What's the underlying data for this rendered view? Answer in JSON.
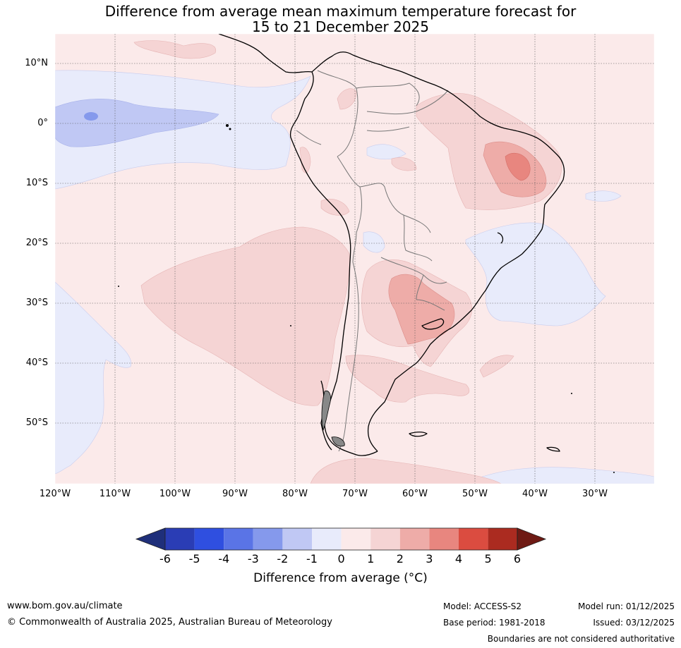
{
  "title": {
    "line1": "Difference from average mean maximum temperature forecast for",
    "line2": "15 to 21 December 2025"
  },
  "map": {
    "lat_labels": [
      "10°N",
      "0°",
      "10°S",
      "20°S",
      "30°S",
      "40°S",
      "50°S"
    ],
    "lon_labels": [
      "120°W",
      "110°W",
      "100°W",
      "90°W",
      "80°W",
      "70°W",
      "60°W",
      "50°W",
      "40°W",
      "30°W"
    ],
    "features": [
      "South America coastline",
      "national boundaries"
    ]
  },
  "colorbar": {
    "label": "Difference from average (°C)",
    "ticks": [
      "-6",
      "-5",
      "-4",
      "-3",
      "-2",
      "-1",
      "0",
      "1",
      "2",
      "3",
      "4",
      "5",
      "6"
    ],
    "colors": [
      "#1f2f7a",
      "#2a3db5",
      "#2f4fe0",
      "#5a74e6",
      "#8599ec",
      "#c0c8f4",
      "#e8ebfb",
      "#fbeaea",
      "#f5d4d4",
      "#eeaca8",
      "#e8867f",
      "#db4c40",
      "#ab2b20",
      "#6e1a14"
    ]
  },
  "footer": {
    "url": "www.bom.gov.au/climate",
    "copyright": "© Commonwealth of Australia 2025, Australian Bureau of Meteorology",
    "model": "Model: ACCESS-S2",
    "model_run": "Model run: 01/12/2025",
    "base_period": "Base period: 1981-2018",
    "issued": "Issued: 03/12/2025",
    "disclaimer": "Boundaries are not considered authoritative"
  }
}
